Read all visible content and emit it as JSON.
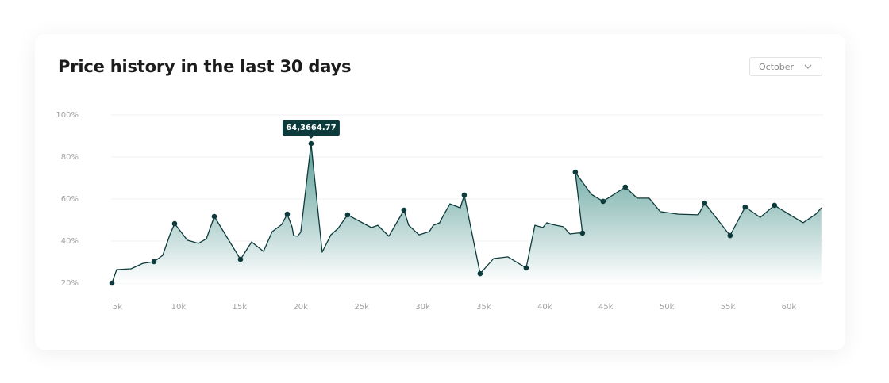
{
  "chart_data": {
    "type": "area",
    "title": "Price history in the last 30 days",
    "x": [
      4545,
      4935,
      6105,
      7080,
      7990,
      8705,
      9290,
      9680,
      10720,
      11630,
      12280,
      12930,
      15075,
      15985,
      16960,
      17675,
      18455,
      18910,
      19300,
      19430,
      19755,
      20015,
      20860,
      21770,
      22485,
      23070,
      23850,
      25800,
      26320,
      27230,
      28465,
      28855,
      29700,
      30545,
      30870,
      31390,
      31650,
      32235,
      33080,
      33405,
      34705,
      35810,
      36980,
      38475,
      39190,
      39840,
      40165,
      40620,
      41530,
      42050,
      42700,
      43090,
      42505,
      43805,
      44780,
      46600,
      47575,
      48550,
      49460,
      50955,
      52580,
      53100,
      55180,
      56415,
      57650,
      58820,
      59990,
      61160,
      62200,
      62655
    ],
    "series": [
      {
        "color": "#0d3b3b",
        "fill": "#3f8d86",
        "values": [
          20,
          26.4,
          26.8,
          29.4,
          30.2,
          33.2,
          43,
          48.3,
          40.4,
          38.9,
          41.1,
          51.7,
          31.3,
          39.6,
          35.1,
          44.5,
          47.9,
          52.8,
          46.8,
          42.6,
          42.3,
          44.2,
          86.4,
          34.7,
          43,
          46,
          52.5,
          46.4,
          47.5,
          42.3,
          54.7,
          47.5,
          43,
          44.5,
          47.5,
          48.7,
          51.7,
          57.7,
          55.8,
          61.9,
          24.5,
          31.7,
          32.5,
          27.2,
          47.5,
          46.4,
          48.7,
          47.9,
          46.8,
          43.4,
          43.8,
          43.8,
          72.8,
          62.3,
          58.9,
          65.7,
          60.4,
          60.4,
          54,
          52.8,
          52.5,
          58.1,
          42.6,
          56.2,
          51.3,
          57,
          52.8,
          48.7,
          52.8,
          55.8
        ],
        "markers": [
          true,
          false,
          false,
          false,
          true,
          false,
          false,
          true,
          false,
          false,
          false,
          true,
          true,
          false,
          false,
          false,
          false,
          true,
          false,
          false,
          false,
          false,
          true,
          false,
          false,
          false,
          true,
          false,
          false,
          false,
          true,
          false,
          false,
          false,
          false,
          false,
          false,
          false,
          false,
          true,
          true,
          false,
          false,
          true,
          false,
          false,
          false,
          false,
          false,
          false,
          false,
          true,
          true,
          false,
          true,
          true,
          false,
          false,
          false,
          false,
          false,
          true,
          true,
          true,
          false,
          true,
          false,
          false,
          false,
          false
        ]
      }
    ],
    "annotations": [
      {
        "text": "64,3664.77"
      }
    ],
    "xlim": [
      4480,
      62800
    ],
    "xticks": [
      {
        "value": 5000,
        "label": "5k"
      },
      {
        "value": 10000,
        "label": "10k"
      },
      {
        "value": 15000,
        "label": "15k"
      },
      {
        "value": 20000,
        "label": "20k"
      },
      {
        "value": 25000,
        "label": "25k"
      },
      {
        "value": 30000,
        "label": "30k"
      },
      {
        "value": 35000,
        "label": "35k"
      },
      {
        "value": 40000,
        "label": "40k"
      },
      {
        "value": 45000,
        "label": "45k"
      },
      {
        "value": 50000,
        "label": "50k"
      },
      {
        "value": 55000,
        "label": "55k"
      },
      {
        "value": 60000,
        "label": "60k"
      }
    ],
    "ylim": [
      20,
      100
    ],
    "yticks": [
      {
        "value": 20,
        "label": "20%"
      },
      {
        "value": 40,
        "label": "40%"
      },
      {
        "value": 60,
        "label": "60%"
      },
      {
        "value": 80,
        "label": "80%"
      },
      {
        "value": 100,
        "label": "100%"
      }
    ],
    "grid": true
  },
  "controls": {
    "month": "October"
  }
}
